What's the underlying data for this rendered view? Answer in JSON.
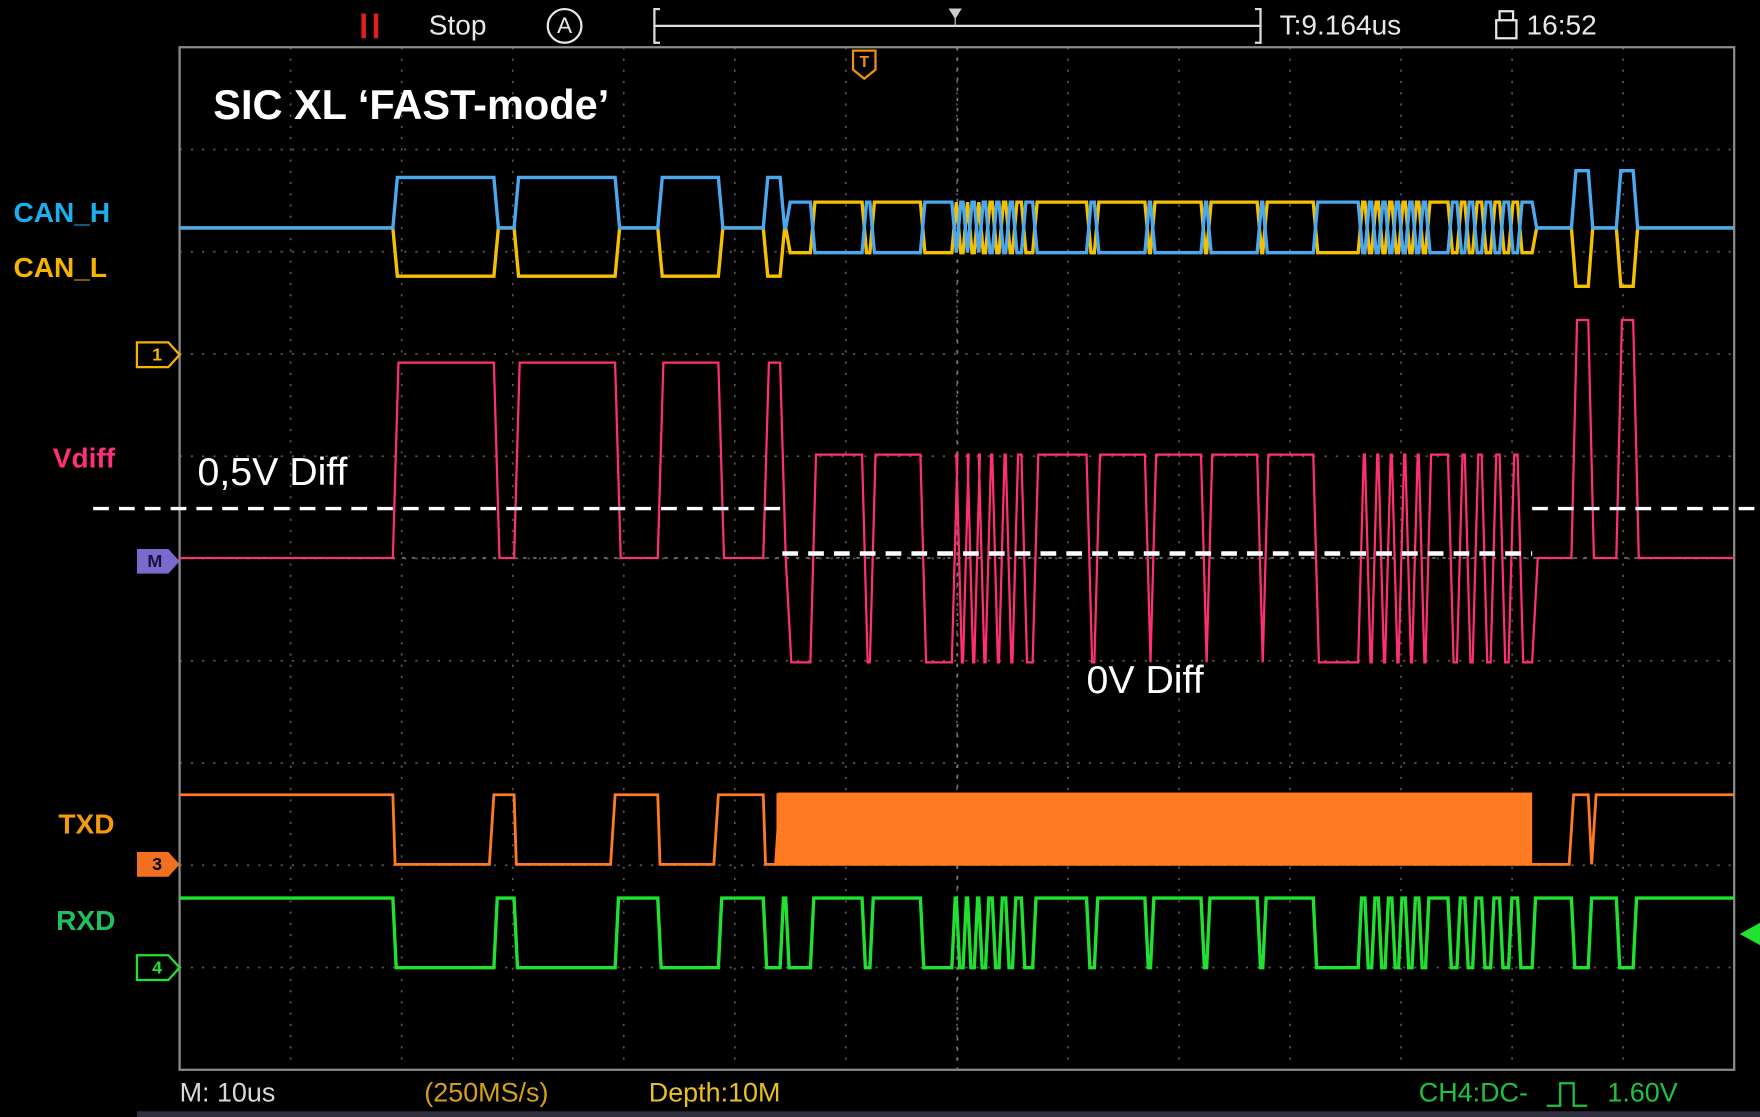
{
  "top_bar": {
    "status": "Stop",
    "trigger_mode": "A",
    "time_offset": "T:9.164us",
    "clock": "16:52"
  },
  "title": "SIC XL ‘FAST-mode’",
  "channel_labels": {
    "can_h": "CAN_H",
    "can_l": "CAN_L",
    "vdiff": "Vdiff",
    "txd": "TXD",
    "rxd": "RXD"
  },
  "markers": {
    "ch1": "1",
    "math": "M",
    "ch3": "3",
    "ch4": "4",
    "trigger": "T"
  },
  "annotations": {
    "threshold_high": "0,5V Diff",
    "threshold_low": "0V Diff"
  },
  "status_bar": {
    "timebase": "M: 10us",
    "sample_rate": "(250MS/s)",
    "depth": "Depth:10M",
    "trigger_source": "CH4:DC-",
    "trigger_level": "1.60V"
  }
}
